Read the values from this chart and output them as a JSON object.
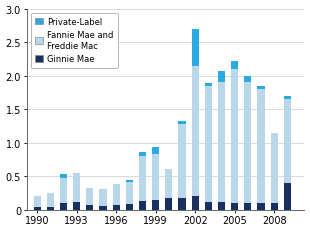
{
  "years": [
    1990,
    1991,
    1992,
    1993,
    1994,
    1995,
    1996,
    1997,
    1998,
    1999,
    2000,
    2001,
    2002,
    2003,
    2004,
    2005,
    2006,
    2007,
    2008,
    2009
  ],
  "ginnie_mae": [
    0.05,
    0.05,
    0.1,
    0.12,
    0.07,
    0.06,
    0.08,
    0.09,
    0.13,
    0.15,
    0.17,
    0.18,
    0.2,
    0.12,
    0.12,
    0.1,
    0.1,
    0.1,
    0.1,
    0.4
  ],
  "fannie_freddie": [
    0.15,
    0.2,
    0.38,
    0.43,
    0.25,
    0.25,
    0.3,
    0.33,
    0.68,
    0.68,
    0.44,
    1.1,
    1.95,
    1.72,
    1.78,
    2.0,
    1.8,
    1.7,
    1.05,
    1.25
  ],
  "private_label": [
    0.0,
    0.0,
    0.05,
    0.0,
    0.0,
    0.0,
    0.0,
    0.02,
    0.06,
    0.1,
    0.0,
    0.05,
    0.55,
    0.05,
    0.17,
    0.12,
    0.1,
    0.05,
    0.0,
    0.05
  ],
  "color_ginnie": "#1a3060",
  "color_fannie": "#b8d8ea",
  "color_private": "#29abe2",
  "ylim": [
    0,
    3.0
  ],
  "yticks": [
    0,
    0.5,
    1.0,
    1.5,
    2.0,
    2.5,
    3.0
  ],
  "ytick_labels": [
    "0",
    "0.5",
    "1.0",
    "1.5",
    "2.0",
    "2.5",
    "3.0"
  ],
  "xtick_years": [
    1990,
    1993,
    1996,
    1999,
    2002,
    2005,
    2008
  ],
  "bar_width": 0.55,
  "xlim": [
    1989.2,
    2010.3
  ]
}
